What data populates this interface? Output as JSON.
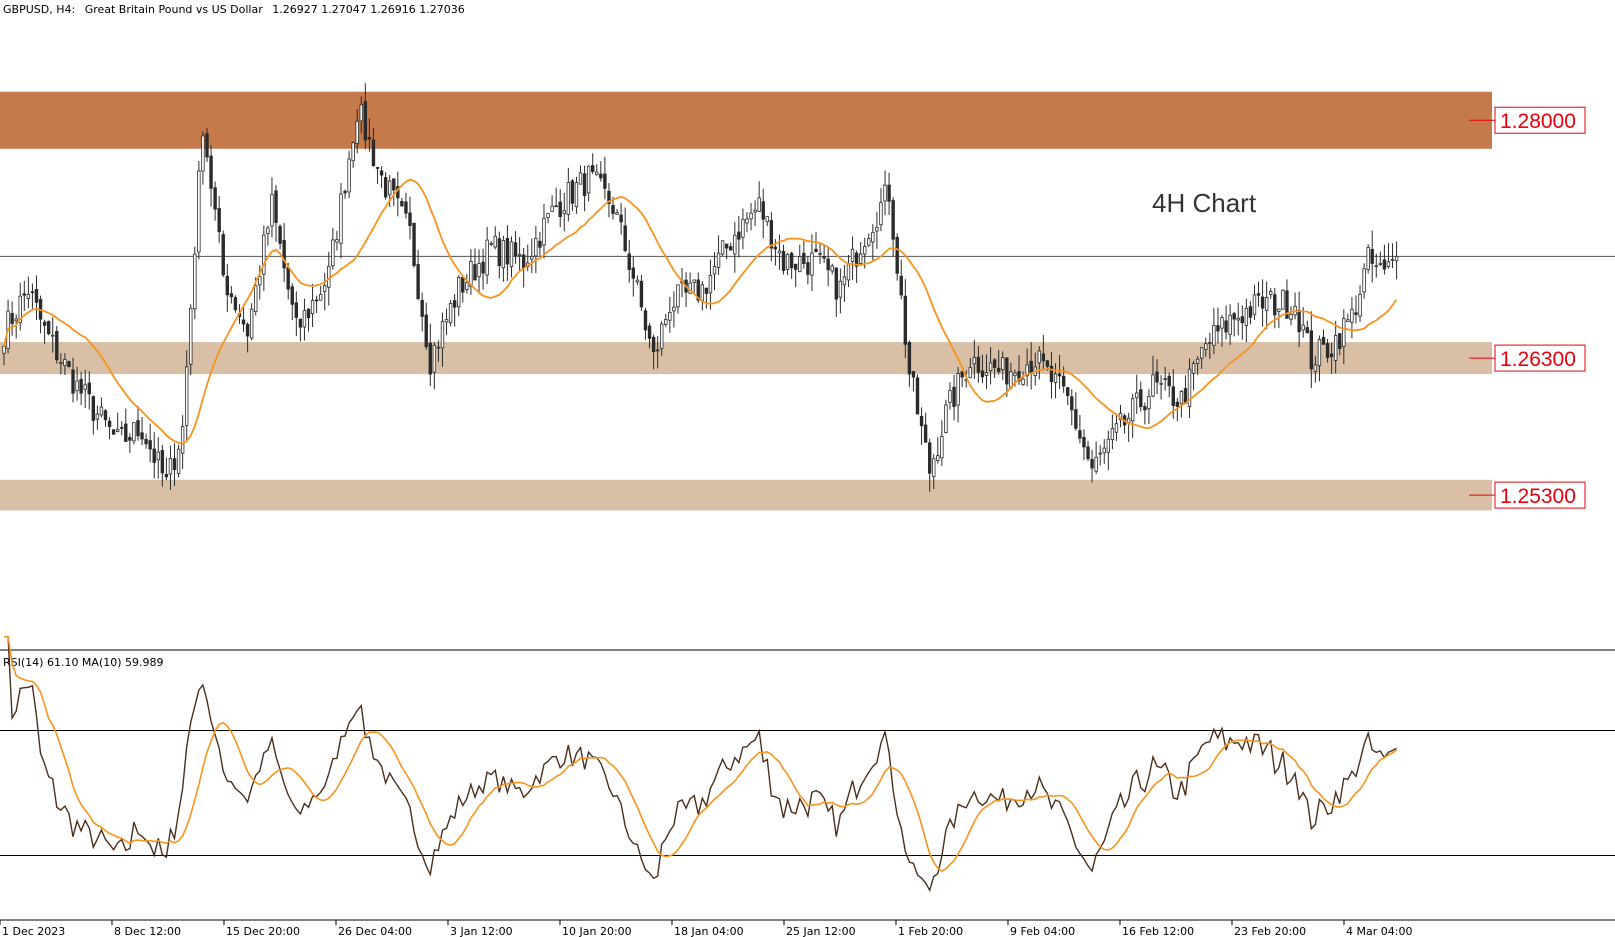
{
  "chart_data": {
    "type": "candlestick",
    "header": {
      "symbol": "GBPUSD, H4:",
      "description": "Great Britain Pound vs US Dollar",
      "ohlc": "1.26927 1.27047 1.26916 1.27036"
    },
    "annotation": "4H Chart",
    "y_range": [
      1.2435,
      1.2875
    ],
    "current_price": 1.27036,
    "zones": [
      {
        "label": "1.28000",
        "low": 1.2781,
        "high": 1.2822,
        "color": "#c47a4b"
      },
      {
        "label": "1.26300",
        "low": 1.2619,
        "high": 1.2642,
        "color": "#d8bfa6"
      },
      {
        "label": "1.25300",
        "low": 1.2521,
        "high": 1.2543,
        "color": "#d8bfa6"
      }
    ],
    "x_labels": [
      "1 Dec 2023",
      "8 Dec 12:00",
      "15 Dec 20:00",
      "26 Dec 04:00",
      "3 Jan 12:00",
      "10 Jan 20:00",
      "18 Jan 04:00",
      "25 Jan 12:00",
      "1 Feb 20:00",
      "9 Feb 04:00",
      "16 Feb 12:00",
      "23 Feb 20:00",
      "4 Mar 04:00"
    ],
    "close_anchors": [
      [
        0,
        1.265
      ],
      [
        6,
        1.268
      ],
      [
        10,
        1.265
      ],
      [
        18,
        1.261
      ],
      [
        28,
        1.257
      ],
      [
        34,
        1.258
      ],
      [
        40,
        1.254
      ],
      [
        44,
        1.258
      ],
      [
        49,
        1.28
      ],
      [
        54,
        1.269
      ],
      [
        60,
        1.265
      ],
      [
        66,
        1.274
      ],
      [
        72,
        1.265
      ],
      [
        80,
        1.269
      ],
      [
        87,
        1.281
      ],
      [
        93,
        1.276
      ],
      [
        100,
        1.272
      ],
      [
        105,
        1.263
      ],
      [
        112,
        1.268
      ],
      [
        120,
        1.271
      ],
      [
        128,
        1.27
      ],
      [
        136,
        1.274
      ],
      [
        144,
        1.276
      ],
      [
        150,
        1.274
      ],
      [
        155,
        1.269
      ],
      [
        160,
        1.263
      ],
      [
        164,
        1.267
      ],
      [
        172,
        1.268
      ],
      [
        180,
        1.272
      ],
      [
        186,
        1.274
      ],
      [
        192,
        1.27
      ],
      [
        200,
        1.27
      ],
      [
        206,
        1.268
      ],
      [
        212,
        1.272
      ],
      [
        218,
        1.275
      ],
      [
        223,
        1.262
      ],
      [
        228,
        1.255
      ],
      [
        232,
        1.259
      ],
      [
        238,
        1.263
      ],
      [
        246,
        1.262
      ],
      [
        254,
        1.263
      ],
      [
        262,
        1.26
      ],
      [
        268,
        1.255
      ],
      [
        275,
        1.258
      ],
      [
        283,
        1.261
      ],
      [
        290,
        1.26
      ],
      [
        296,
        1.264
      ],
      [
        303,
        1.266
      ],
      [
        310,
        1.267
      ],
      [
        318,
        1.267
      ],
      [
        322,
        1.263
      ],
      [
        327,
        1.264
      ],
      [
        332,
        1.266
      ],
      [
        336,
        1.27
      ],
      [
        340,
        1.269
      ],
      [
        343,
        1.2704
      ]
    ],
    "ma_period": 20,
    "rsi": {
      "header": "RSI(14) 61.10 MA(10) 59.989",
      "rsi_value": 61.1,
      "ma_value": 59.989,
      "levels": [
        70,
        30
      ],
      "range": [
        10,
        90
      ]
    },
    "colors": {
      "candle": "#2b2b2b",
      "ma": "#f7931e",
      "rsi": "#4a2f1c",
      "rsi_ma": "#f7931e",
      "price_line": "#808080",
      "label_border": "#e8000b",
      "label_text": "#e8000b"
    }
  }
}
